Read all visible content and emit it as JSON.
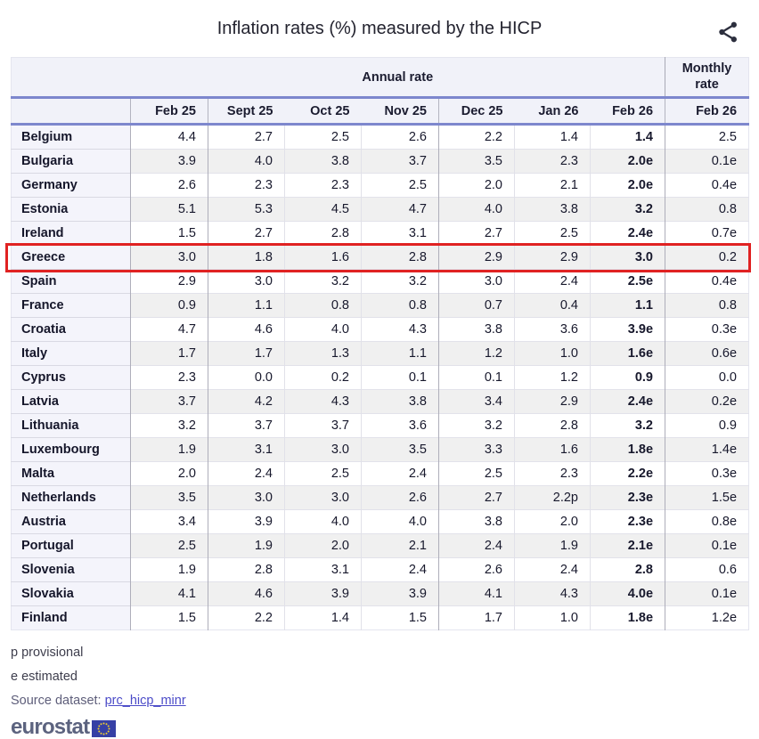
{
  "title": "Inflation rates (%) measured by the HICP",
  "icons": {
    "share": "share-nodes",
    "flag": "eu-flag"
  },
  "table": {
    "group_header_annual": "Annual rate",
    "group_header_monthly": "Monthly rate",
    "annual_columns": [
      "Feb 25",
      "Sept 25",
      "Oct 25",
      "Nov 25",
      "Dec 25",
      "Jan 26",
      "Feb 26"
    ],
    "monthly_column": "Feb 26",
    "highlighted_country": "Greece",
    "rows": [
      {
        "country": "Belgium",
        "annual": [
          "4.4",
          "2.7",
          "2.5",
          "2.6",
          "2.2",
          "1.4",
          "1.4"
        ],
        "monthly": "2.5"
      },
      {
        "country": "Bulgaria",
        "annual": [
          "3.9",
          "4.0",
          "3.8",
          "3.7",
          "3.5",
          "2.3",
          "2.0e"
        ],
        "monthly": "0.1e"
      },
      {
        "country": "Germany",
        "annual": [
          "2.6",
          "2.3",
          "2.3",
          "2.5",
          "2.0",
          "2.1",
          "2.0e"
        ],
        "monthly": "0.4e"
      },
      {
        "country": "Estonia",
        "annual": [
          "5.1",
          "5.3",
          "4.5",
          "4.7",
          "4.0",
          "3.8",
          "3.2"
        ],
        "monthly": "0.8"
      },
      {
        "country": "Ireland",
        "annual": [
          "1.5",
          "2.7",
          "2.8",
          "3.1",
          "2.7",
          "2.5",
          "2.4e"
        ],
        "monthly": "0.7e"
      },
      {
        "country": "Greece",
        "annual": [
          "3.0",
          "1.8",
          "1.6",
          "2.8",
          "2.9",
          "2.9",
          "3.0"
        ],
        "monthly": "0.2"
      },
      {
        "country": "Spain",
        "annual": [
          "2.9",
          "3.0",
          "3.2",
          "3.2",
          "3.0",
          "2.4",
          "2.5e"
        ],
        "monthly": "0.4e"
      },
      {
        "country": "France",
        "annual": [
          "0.9",
          "1.1",
          "0.8",
          "0.8",
          "0.7",
          "0.4",
          "1.1"
        ],
        "monthly": "0.8"
      },
      {
        "country": "Croatia",
        "annual": [
          "4.7",
          "4.6",
          "4.0",
          "4.3",
          "3.8",
          "3.6",
          "3.9e"
        ],
        "monthly": "0.3e"
      },
      {
        "country": "Italy",
        "annual": [
          "1.7",
          "1.7",
          "1.3",
          "1.1",
          "1.2",
          "1.0",
          "1.6e"
        ],
        "monthly": "0.6e"
      },
      {
        "country": "Cyprus",
        "annual": [
          "2.3",
          "0.0",
          "0.2",
          "0.1",
          "0.1",
          "1.2",
          "0.9"
        ],
        "monthly": "0.0"
      },
      {
        "country": "Latvia",
        "annual": [
          "3.7",
          "4.2",
          "4.3",
          "3.8",
          "3.4",
          "2.9",
          "2.4e"
        ],
        "monthly": "0.2e"
      },
      {
        "country": "Lithuania",
        "annual": [
          "3.2",
          "3.7",
          "3.7",
          "3.6",
          "3.2",
          "2.8",
          "3.2"
        ],
        "monthly": "0.9"
      },
      {
        "country": "Luxembourg",
        "annual": [
          "1.9",
          "3.1",
          "3.0",
          "3.5",
          "3.3",
          "1.6",
          "1.8e"
        ],
        "monthly": "1.4e"
      },
      {
        "country": "Malta",
        "annual": [
          "2.0",
          "2.4",
          "2.5",
          "2.4",
          "2.5",
          "2.3",
          "2.2e"
        ],
        "monthly": "0.3e"
      },
      {
        "country": "Netherlands",
        "annual": [
          "3.5",
          "3.0",
          "3.0",
          "2.6",
          "2.7",
          "2.2p",
          "2.3e"
        ],
        "monthly": "1.5e"
      },
      {
        "country": "Austria",
        "annual": [
          "3.4",
          "3.9",
          "4.0",
          "4.0",
          "3.8",
          "2.0",
          "2.3e"
        ],
        "monthly": "0.8e"
      },
      {
        "country": "Portugal",
        "annual": [
          "2.5",
          "1.9",
          "2.0",
          "2.1",
          "2.4",
          "1.9",
          "2.1e"
        ],
        "monthly": "0.1e"
      },
      {
        "country": "Slovenia",
        "annual": [
          "1.9",
          "2.8",
          "3.1",
          "2.4",
          "2.6",
          "2.4",
          "2.8"
        ],
        "monthly": "0.6"
      },
      {
        "country": "Slovakia",
        "annual": [
          "4.1",
          "4.6",
          "3.9",
          "3.9",
          "4.1",
          "4.3",
          "4.0e"
        ],
        "monthly": "0.1e"
      },
      {
        "country": "Finland",
        "annual": [
          "1.5",
          "2.2",
          "1.4",
          "1.5",
          "1.7",
          "1.0",
          "1.8e"
        ],
        "monthly": "1.2e"
      }
    ]
  },
  "footnotes": {
    "provisional": "p provisional",
    "estimated": "e estimated"
  },
  "source": {
    "label": "Source dataset:",
    "link_text": "prc_hicp_minr"
  },
  "brand": {
    "logo_text": "eurostat"
  },
  "colors": {
    "accent_rule": "#7d87cd",
    "header_bg": "#f1f2f9",
    "country_col_bg": "#f4f4fb",
    "row_stripe": "#f0f0f0",
    "highlight_red": "#e02222",
    "link": "#4b4bc8",
    "logo_text": "#5c637f",
    "flag_blue": "#3640a5",
    "flag_star_yellow": "#f3d02c",
    "icon_dark": "#2c2f3e"
  }
}
